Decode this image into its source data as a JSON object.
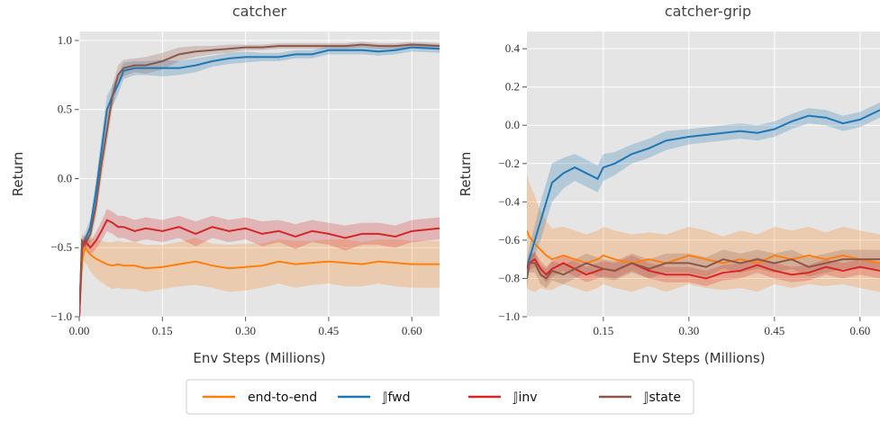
{
  "chart_data": [
    {
      "type": "line",
      "title": "catcher",
      "xlabel": "Env Steps (Millions)",
      "ylabel": "Return",
      "xlim": [
        0,
        0.65
      ],
      "ylim": [
        -1,
        1.065
      ],
      "xticks": [
        {
          "value": 0,
          "label": "0.00"
        },
        0.15,
        {
          "value": 0.3,
          "label": "0.30"
        },
        0.45,
        {
          "value": 0.6,
          "label": "0.60"
        }
      ],
      "yticks": [
        {
          "value": -1,
          "label": "−1.0"
        },
        {
          "value": -0.5,
          "label": "−0.5"
        },
        {
          "value": 0,
          "label": "0.0"
        },
        0.5,
        {
          "value": 1,
          "label": "1.0"
        }
      ],
      "grid": true,
      "x": [
        0,
        0.005,
        0.01,
        0.02,
        0.03,
        0.04,
        0.05,
        0.06,
        0.07,
        0.08,
        0.1,
        0.12,
        0.15,
        0.18,
        0.21,
        0.24,
        0.27,
        0.3,
        0.33,
        0.36,
        0.39,
        0.42,
        0.45,
        0.48,
        0.51,
        0.54,
        0.57,
        0.6,
        0.65
      ],
      "series": [
        {
          "name": "end-to-end",
          "color": "#ff7f0e",
          "values": [
            -1.0,
            -0.6,
            -0.5,
            -0.55,
            -0.58,
            -0.6,
            -0.62,
            -0.63,
            -0.62,
            -0.63,
            -0.63,
            -0.65,
            -0.64,
            -0.62,
            -0.6,
            -0.63,
            -0.65,
            -0.64,
            -0.63,
            -0.6,
            -0.62,
            -0.61,
            -0.6,
            -0.61,
            -0.62,
            -0.6,
            -0.61,
            -0.62,
            -0.62
          ],
          "error": [
            0.05,
            0.1,
            0.1,
            0.12,
            0.14,
            0.15,
            0.16,
            0.17,
            0.17,
            0.17,
            0.17,
            0.17,
            0.16,
            0.16,
            0.17,
            0.16,
            0.17,
            0.17,
            0.16,
            0.16,
            0.17,
            0.16,
            0.16,
            0.17,
            0.16,
            0.16,
            0.17,
            0.17,
            0.17
          ]
        },
        {
          "name": "𝕁fwd",
          "color": "#1f77b4",
          "values": [
            -1.0,
            -0.5,
            -0.45,
            -0.35,
            -0.1,
            0.2,
            0.5,
            0.6,
            0.68,
            0.78,
            0.8,
            0.8,
            0.8,
            0.8,
            0.82,
            0.85,
            0.87,
            0.88,
            0.88,
            0.88,
            0.9,
            0.9,
            0.93,
            0.93,
            0.93,
            0.92,
            0.93,
            0.95,
            0.94
          ],
          "error": [
            0.02,
            0.05,
            0.05,
            0.06,
            0.08,
            0.1,
            0.1,
            0.08,
            0.07,
            0.06,
            0.05,
            0.05,
            0.06,
            0.05,
            0.05,
            0.04,
            0.04,
            0.04,
            0.03,
            0.03,
            0.03,
            0.03,
            0.03,
            0.03,
            0.03,
            0.03,
            0.03,
            0.03,
            0.03
          ]
        },
        {
          "name": "𝕁inv",
          "color": "#d62728",
          "values": [
            -1.0,
            -0.5,
            -0.45,
            -0.5,
            -0.45,
            -0.38,
            -0.3,
            -0.32,
            -0.35,
            -0.35,
            -0.38,
            -0.36,
            -0.38,
            -0.35,
            -0.4,
            -0.35,
            -0.38,
            -0.36,
            -0.4,
            -0.38,
            -0.42,
            -0.38,
            -0.4,
            -0.43,
            -0.4,
            -0.4,
            -0.42,
            -0.38,
            -0.36
          ],
          "error": [
            0.02,
            0.04,
            0.04,
            0.05,
            0.06,
            0.07,
            0.08,
            0.08,
            0.08,
            0.08,
            0.08,
            0.08,
            0.08,
            0.08,
            0.09,
            0.08,
            0.08,
            0.08,
            0.09,
            0.08,
            0.09,
            0.08,
            0.08,
            0.09,
            0.08,
            0.08,
            0.08,
            0.08,
            0.08
          ]
        },
        {
          "name": "𝕁state",
          "color": "#8c564b",
          "values": [
            -1.0,
            -0.45,
            -0.48,
            -0.4,
            -0.2,
            0.1,
            0.35,
            0.6,
            0.75,
            0.8,
            0.82,
            0.82,
            0.85,
            0.9,
            0.92,
            0.93,
            0.94,
            0.95,
            0.95,
            0.96,
            0.96,
            0.96,
            0.96,
            0.96,
            0.97,
            0.96,
            0.96,
            0.97,
            0.96
          ],
          "error": [
            0.02,
            0.05,
            0.05,
            0.06,
            0.08,
            0.1,
            0.1,
            0.08,
            0.07,
            0.06,
            0.05,
            0.06,
            0.06,
            0.05,
            0.04,
            0.03,
            0.03,
            0.02,
            0.02,
            0.02,
            0.02,
            0.02,
            0.02,
            0.02,
            0.02,
            0.02,
            0.02,
            0.02,
            0.02
          ]
        }
      ]
    },
    {
      "type": "line",
      "title": "catcher-grip",
      "xlabel": "Env Steps (Millions)",
      "ylabel": "Return",
      "xlim": [
        0.016,
        0.635
      ],
      "ylim": [
        -1,
        0.49
      ],
      "xticks": [
        0.15,
        {
          "value": 0.3,
          "label": "0.30"
        },
        0.45,
        {
          "value": 0.6,
          "label": "0.60"
        }
      ],
      "yticks": [
        {
          "value": -1,
          "label": "−1.0"
        },
        {
          "value": -0.8,
          "label": "−0.8"
        },
        {
          "value": -0.6,
          "label": "−0.6"
        },
        {
          "value": -0.4,
          "label": "−0.4"
        },
        {
          "value": -0.2,
          "label": "−0.2"
        },
        {
          "value": 0,
          "label": "0.0"
        },
        0.2,
        0.4
      ],
      "grid": true,
      "x": [
        0.016,
        0.02,
        0.03,
        0.04,
        0.05,
        0.06,
        0.08,
        0.1,
        0.12,
        0.14,
        0.15,
        0.17,
        0.2,
        0.23,
        0.26,
        0.3,
        0.33,
        0.36,
        0.39,
        0.42,
        0.45,
        0.48,
        0.51,
        0.54,
        0.57,
        0.6,
        0.635
      ],
      "series": [
        {
          "name": "end-to-end",
          "color": "#ff7f0e",
          "values": [
            -0.55,
            -0.58,
            -0.62,
            -0.65,
            -0.68,
            -0.7,
            -0.68,
            -0.7,
            -0.72,
            -0.7,
            -0.68,
            -0.7,
            -0.72,
            -0.7,
            -0.72,
            -0.68,
            -0.7,
            -0.72,
            -0.7,
            -0.72,
            -0.68,
            -0.7,
            -0.68,
            -0.7,
            -0.68,
            -0.7,
            -0.72
          ],
          "error": [
            0.3,
            0.28,
            0.25,
            0.2,
            0.18,
            0.16,
            0.15,
            0.15,
            0.15,
            0.15,
            0.15,
            0.15,
            0.15,
            0.14,
            0.15,
            0.15,
            0.15,
            0.14,
            0.15,
            0.15,
            0.15,
            0.15,
            0.15,
            0.14,
            0.15,
            0.15,
            0.15
          ]
        },
        {
          "name": "𝕁fwd",
          "color": "#1f77b4",
          "values": [
            -0.75,
            -0.7,
            -0.6,
            -0.5,
            -0.4,
            -0.3,
            -0.25,
            -0.22,
            -0.25,
            -0.28,
            -0.22,
            -0.2,
            -0.15,
            -0.12,
            -0.08,
            -0.06,
            -0.05,
            -0.04,
            -0.03,
            -0.04,
            -0.02,
            0.02,
            0.05,
            0.04,
            0.01,
            0.03,
            0.08
          ],
          "error": [
            0.05,
            0.06,
            0.08,
            0.1,
            0.1,
            0.1,
            0.08,
            0.07,
            0.07,
            0.07,
            0.07,
            0.06,
            0.05,
            0.05,
            0.05,
            0.04,
            0.04,
            0.04,
            0.04,
            0.04,
            0.04,
            0.04,
            0.04,
            0.04,
            0.04,
            0.04,
            0.04
          ]
        },
        {
          "name": "𝕁inv",
          "color": "#d62728",
          "values": [
            -0.75,
            -0.72,
            -0.7,
            -0.75,
            -0.78,
            -0.75,
            -0.72,
            -0.75,
            -0.78,
            -0.76,
            -0.75,
            -0.76,
            -0.72,
            -0.76,
            -0.78,
            -0.78,
            -0.8,
            -0.77,
            -0.76,
            -0.73,
            -0.76,
            -0.78,
            -0.77,
            -0.74,
            -0.76,
            -0.74,
            -0.76
          ],
          "error": [
            0.04,
            0.04,
            0.04,
            0.04,
            0.04,
            0.04,
            0.04,
            0.04,
            0.04,
            0.04,
            0.04,
            0.04,
            0.04,
            0.04,
            0.04,
            0.04,
            0.04,
            0.04,
            0.04,
            0.04,
            0.04,
            0.04,
            0.04,
            0.04,
            0.04,
            0.04,
            0.04
          ]
        },
        {
          "name": "𝕁state",
          "color": "#8c564b",
          "values": [
            -0.8,
            -0.72,
            -0.72,
            -0.78,
            -0.8,
            -0.76,
            -0.78,
            -0.75,
            -0.72,
            -0.74,
            -0.75,
            -0.76,
            -0.72,
            -0.75,
            -0.72,
            -0.72,
            -0.74,
            -0.7,
            -0.72,
            -0.7,
            -0.72,
            -0.7,
            -0.74,
            -0.72,
            -0.7,
            -0.7,
            -0.7
          ],
          "error": [
            0.05,
            0.05,
            0.05,
            0.05,
            0.05,
            0.05,
            0.05,
            0.05,
            0.05,
            0.05,
            0.05,
            0.05,
            0.05,
            0.05,
            0.05,
            0.05,
            0.05,
            0.05,
            0.05,
            0.05,
            0.05,
            0.05,
            0.05,
            0.05,
            0.05,
            0.05,
            0.05
          ]
        }
      ]
    }
  ]
}
